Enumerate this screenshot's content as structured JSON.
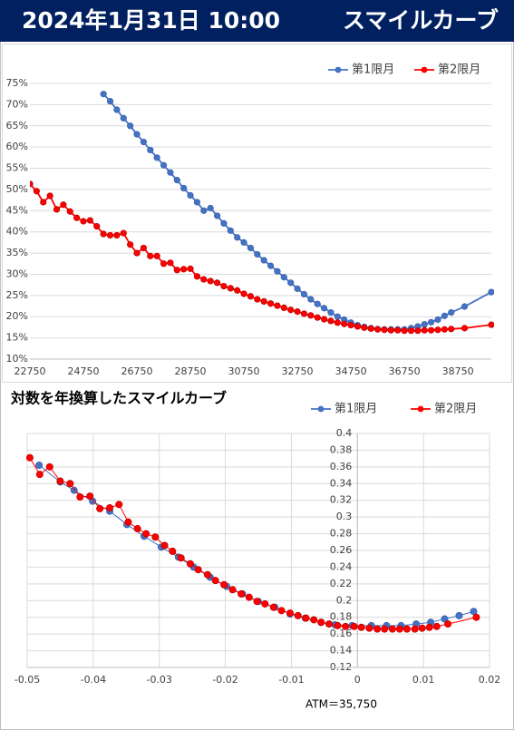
{
  "header": {
    "datetime": "2024年1月31日 10:00",
    "title": "スマイルカーブ"
  },
  "chart_data": [
    {
      "type": "line",
      "legend": "top-right",
      "grid": true,
      "xlim": [
        22750,
        40000
      ],
      "xticks": [
        22750,
        24750,
        26750,
        28750,
        30750,
        32750,
        34750,
        36750,
        38750
      ],
      "ylim": [
        10,
        75
      ],
      "yticks": [
        {
          "value": 10,
          "label": "10%"
        },
        {
          "value": 15,
          "label": "15%"
        },
        {
          "value": 20,
          "label": "20%"
        },
        {
          "value": 25,
          "label": "25%"
        },
        {
          "value": 30,
          "label": "30%"
        },
        {
          "value": 35,
          "label": "35%"
        },
        {
          "value": 40,
          "label": "40%"
        },
        {
          "value": 45,
          "label": "45%"
        },
        {
          "value": 50,
          "label": "50%"
        },
        {
          "value": 55,
          "label": "55%"
        },
        {
          "value": 60,
          "label": "60%"
        },
        {
          "value": 65,
          "label": "65%"
        },
        {
          "value": 70,
          "label": "70%"
        },
        {
          "value": 75,
          "label": "75%"
        }
      ],
      "series": [
        {
          "name": "第1限月",
          "color": "#4472c4",
          "x": [
            25500,
            25750,
            26000,
            26250,
            26500,
            26750,
            27000,
            27250,
            27500,
            27750,
            28000,
            28250,
            28500,
            28750,
            29000,
            29250,
            29500,
            29750,
            30000,
            30250,
            30500,
            30750,
            31000,
            31250,
            31500,
            31750,
            32000,
            32250,
            32500,
            32750,
            33000,
            33250,
            33500,
            33750,
            34000,
            34250,
            34500,
            34750,
            35000,
            35250,
            35500,
            35750,
            36000,
            36250,
            36500,
            36750,
            37000,
            37250,
            37500,
            37750,
            38000,
            38250,
            38500,
            39000,
            40000
          ],
          "values": [
            72.5,
            70.8,
            68.8,
            66.8,
            65.0,
            63.0,
            61.2,
            59.3,
            57.5,
            55.7,
            54.0,
            52.2,
            50.3,
            48.6,
            47.0,
            45.0,
            45.6,
            43.8,
            42.0,
            40.3,
            38.7,
            37.5,
            36.2,
            34.7,
            33.3,
            32.0,
            30.7,
            29.3,
            28.0,
            26.6,
            25.3,
            24.1,
            23.0,
            22.0,
            21.0,
            20.0,
            19.3,
            18.6,
            18.0,
            17.6,
            17.3,
            17.1,
            17.0,
            17.0,
            17.0,
            17.0,
            17.3,
            17.7,
            18.2,
            18.7,
            19.3,
            20.2,
            21.0,
            22.4,
            25.8
          ]
        },
        {
          "name": "第2限月",
          "color": "#ff0000",
          "x": [
            22750,
            23000,
            23250,
            23500,
            23750,
            24000,
            24250,
            24500,
            24750,
            25000,
            25250,
            25500,
            25750,
            26000,
            26250,
            26500,
            26750,
            27000,
            27250,
            27500,
            27750,
            28000,
            28250,
            28500,
            28750,
            29000,
            29250,
            29500,
            29750,
            30000,
            30250,
            30500,
            30750,
            31000,
            31250,
            31500,
            31750,
            32000,
            32250,
            32500,
            32750,
            33000,
            33250,
            33500,
            33750,
            34000,
            34250,
            34500,
            34750,
            35000,
            35250,
            35500,
            35750,
            36000,
            36250,
            36500,
            36750,
            37000,
            37250,
            37500,
            37750,
            38000,
            38250,
            38500,
            39000,
            40000
          ],
          "values": [
            51.3,
            49.6,
            47.0,
            48.5,
            45.3,
            46.4,
            44.8,
            43.3,
            42.5,
            42.7,
            41.3,
            39.5,
            39.2,
            39.2,
            39.7,
            37.0,
            35.0,
            36.2,
            34.3,
            34.3,
            32.5,
            32.7,
            31.0,
            31.2,
            31.3,
            29.5,
            28.8,
            28.4,
            28.0,
            27.2,
            26.7,
            26.2,
            25.4,
            24.8,
            24.1,
            23.6,
            23.1,
            22.6,
            22.1,
            21.6,
            21.2,
            20.7,
            20.3,
            19.8,
            19.4,
            19.0,
            18.6,
            18.3,
            18.0,
            17.7,
            17.4,
            17.2,
            17.0,
            16.9,
            16.8,
            16.8,
            16.7,
            16.7,
            16.7,
            16.8,
            16.8,
            16.9,
            17.0,
            17.1,
            17.3,
            18.1
          ]
        }
      ]
    },
    {
      "type": "line",
      "title": "対数を年換算したスマイルカーブ",
      "annotation": "ATM＝35,750",
      "legend": "top-right",
      "grid": true,
      "xlim": [
        -0.05,
        0.02
      ],
      "xticks": [
        -0.05,
        -0.04,
        -0.03,
        -0.02,
        -0.01,
        0,
        0.01,
        0.02
      ],
      "ylim": [
        0.12,
        0.4
      ],
      "yticks": [
        0.12,
        0.14,
        0.16,
        0.18,
        0.2,
        0.22,
        0.24,
        0.26,
        0.28,
        0.3,
        0.32,
        0.34,
        0.36,
        0.38,
        0.4
      ],
      "series": [
        {
          "name": "第1限月",
          "color": "#4472c4",
          "x": [
            -0.0482,
            -0.045,
            -0.0429,
            -0.0401,
            -0.0375,
            -0.0349,
            -0.0323,
            -0.0297,
            -0.0271,
            -0.0248,
            -0.0223,
            -0.0198,
            -0.0174,
            -0.015,
            -0.0125,
            -0.0102,
            -0.0079,
            -0.0055,
            -0.0034,
            -0.0008,
            0.0021,
            0.0044,
            0.0066,
            0.0089,
            0.0111,
            0.0132,
            0.0154,
            0.0176
          ],
          "values": [
            0.362,
            0.342,
            0.332,
            0.319,
            0.307,
            0.291,
            0.277,
            0.264,
            0.252,
            0.24,
            0.228,
            0.217,
            0.208,
            0.199,
            0.192,
            0.184,
            0.179,
            0.174,
            0.171,
            0.17,
            0.17,
            0.17,
            0.17,
            0.172,
            0.174,
            0.178,
            0.182,
            0.187
          ]
        },
        {
          "name": "第2限月",
          "color": "#ff0000",
          "x": [
            -0.0496,
            -0.0481,
            -0.0466,
            -0.045,
            -0.0435,
            -0.042,
            -0.0405,
            -0.039,
            -0.0375,
            -0.0361,
            -0.0347,
            -0.0333,
            -0.032,
            -0.0306,
            -0.0292,
            -0.028,
            -0.0267,
            -0.0253,
            -0.0241,
            -0.0227,
            -0.0215,
            -0.0202,
            -0.0189,
            -0.0176,
            -0.0164,
            -0.0152,
            -0.014,
            -0.0127,
            -0.0115,
            -0.0102,
            -0.009,
            -0.0078,
            -0.0066,
            -0.0055,
            -0.0043,
            -0.003,
            -0.0018,
            -0.0005,
            0.0006,
            0.0018,
            0.003,
            0.0041,
            0.0053,
            0.0064,
            0.0075,
            0.0087,
            0.0098,
            0.0109,
            0.012,
            0.0137,
            0.018
          ],
          "values": [
            0.371,
            0.351,
            0.36,
            0.343,
            0.34,
            0.324,
            0.325,
            0.31,
            0.311,
            0.315,
            0.294,
            0.286,
            0.28,
            0.276,
            0.266,
            0.259,
            0.251,
            0.244,
            0.237,
            0.231,
            0.224,
            0.219,
            0.213,
            0.208,
            0.204,
            0.199,
            0.196,
            0.192,
            0.188,
            0.185,
            0.182,
            0.179,
            0.177,
            0.174,
            0.172,
            0.17,
            0.169,
            0.169,
            0.168,
            0.167,
            0.166,
            0.166,
            0.166,
            0.166,
            0.166,
            0.166,
            0.167,
            0.168,
            0.169,
            0.172,
            0.18
          ]
        }
      ]
    }
  ]
}
